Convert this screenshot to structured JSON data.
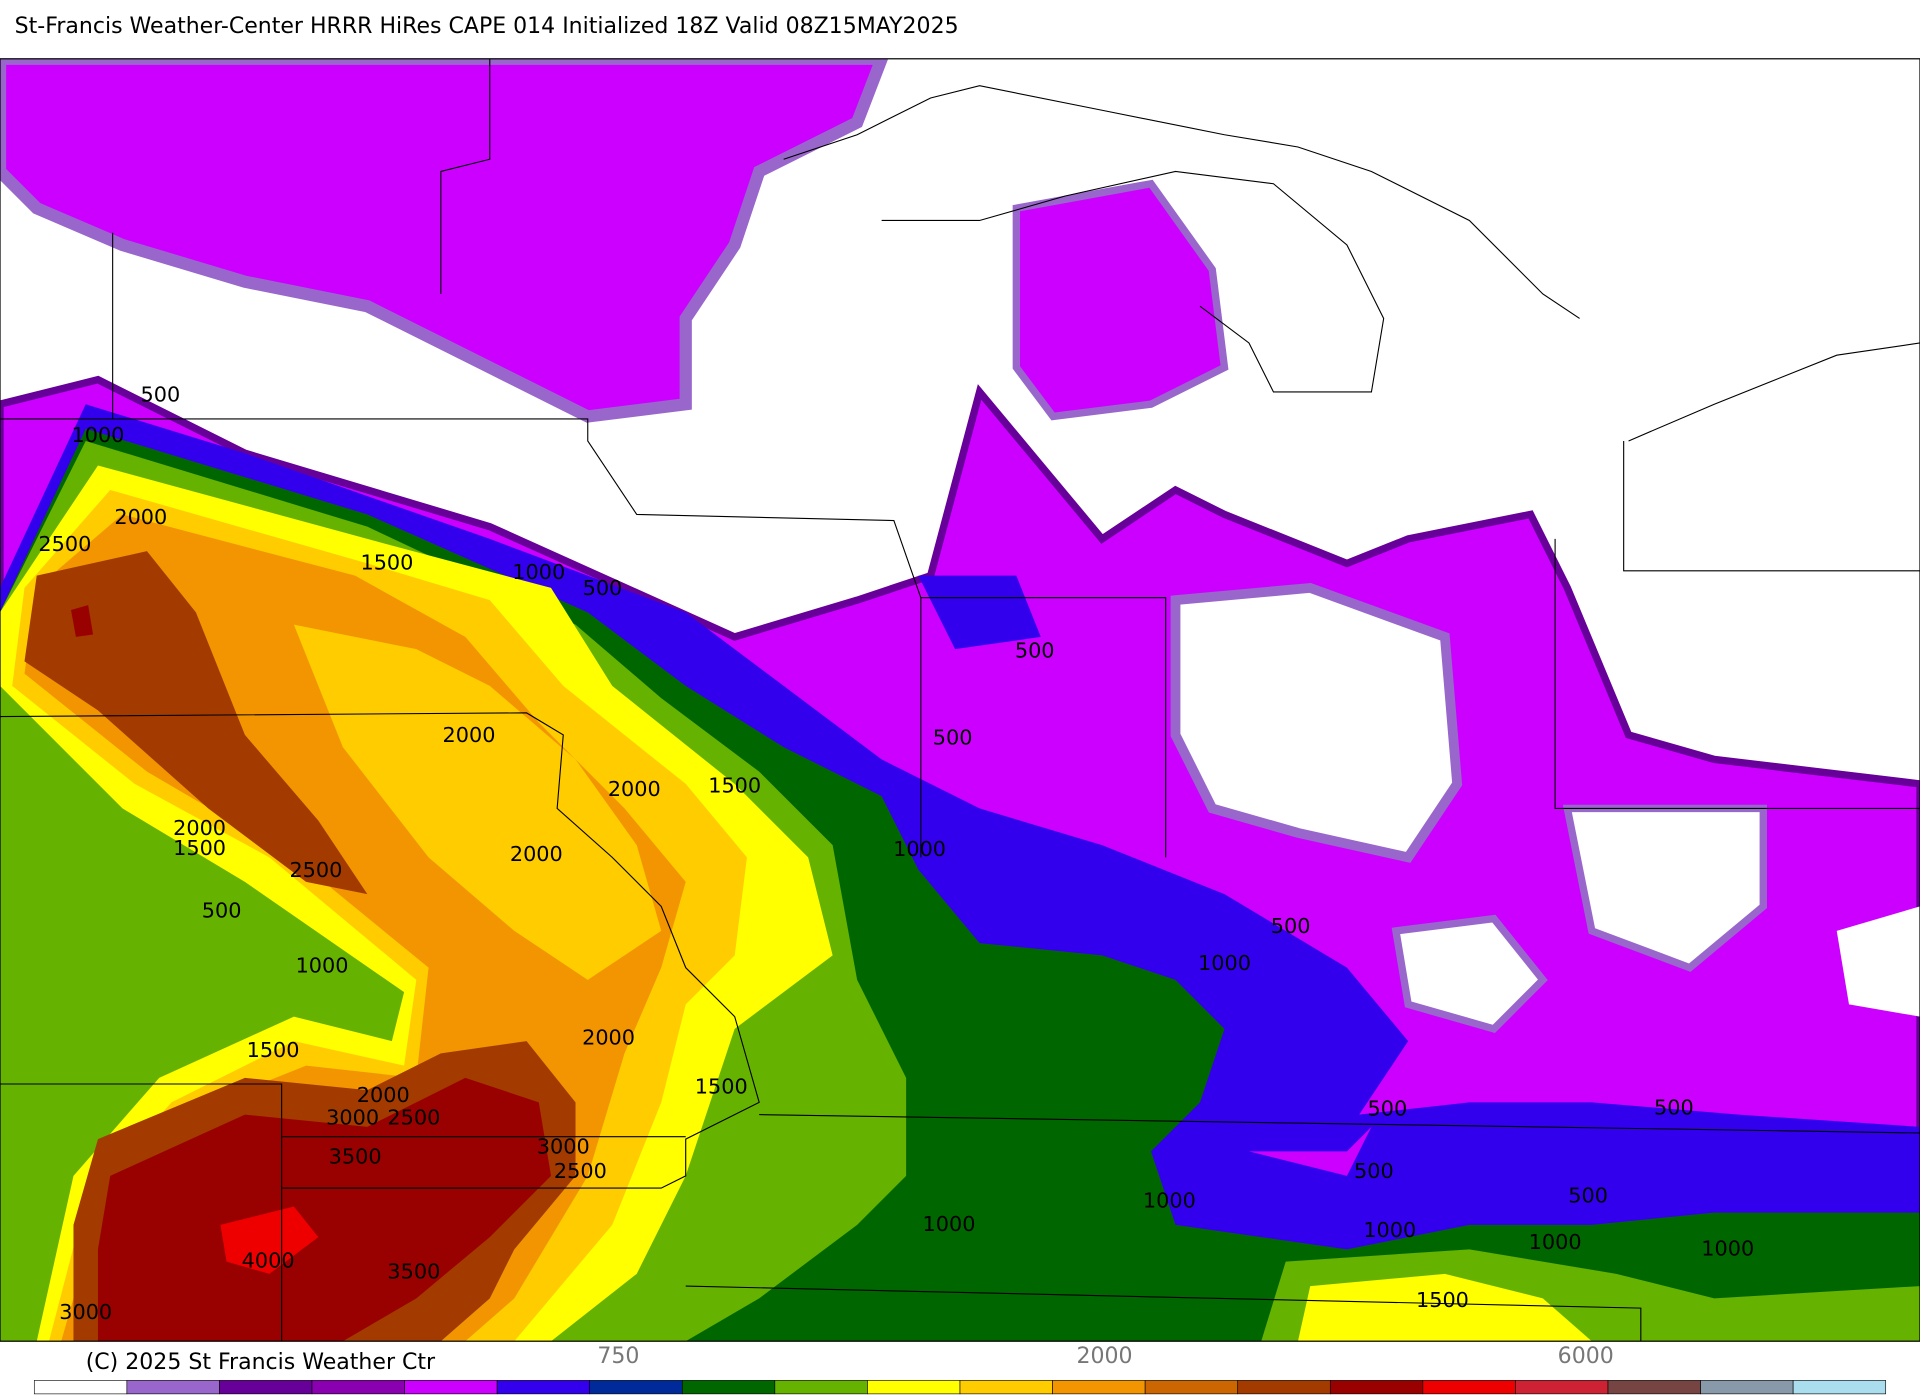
{
  "header": {
    "title": "St-Francis Weather-Center HRRR HiRes CAPE  014 Initialized  18Z Valid 08Z15MAY2025"
  },
  "map": {
    "contour_labels": [
      "500",
      "1000",
      "2000",
      "2500",
      "1500",
      "1000",
      "500",
      "500",
      "2000",
      "500",
      "1500",
      "2000",
      "2000",
      "1500",
      "1000",
      "2000",
      "2500",
      "500",
      "500",
      "1000",
      "1000",
      "2000",
      "1500",
      "1500",
      "2000",
      "500",
      "500",
      "3000",
      "2500",
      "3000",
      "3500",
      "2500",
      "500",
      "1000",
      "500",
      "1000",
      "1000",
      "1000",
      "1000",
      "4000",
      "3500",
      "1500",
      "3000"
    ]
  },
  "colorbar": {
    "colors": [
      "#ffffff",
      "#9966cc",
      "#660099",
      "#8a00b0",
      "#cc00ff",
      "#3300ee",
      "#002a99",
      "#006600",
      "#66b200",
      "#ffff00",
      "#ffcc00",
      "#f29500",
      "#cc6600",
      "#a33a00",
      "#990000",
      "#ee0000",
      "#cc2233",
      "#774444",
      "#8899aa",
      "#aaddee"
    ],
    "labels": [
      "750",
      "2000",
      "6000"
    ]
  },
  "footer": {
    "copyright": "(C) 2025 St Francis Weather Ctr"
  }
}
